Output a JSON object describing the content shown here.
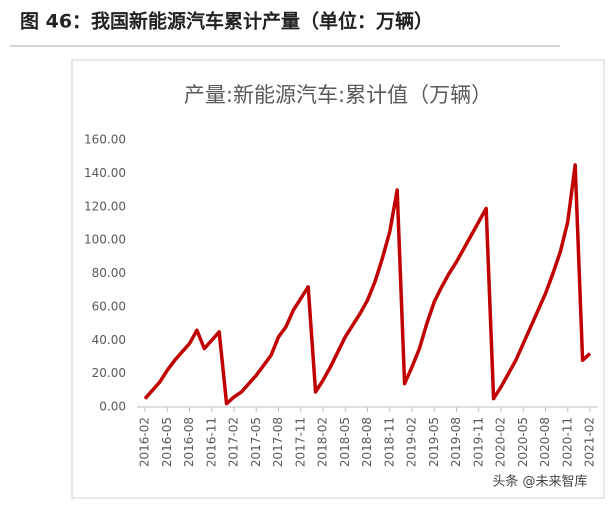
{
  "chart_data": {
    "type": "line",
    "heading": "图 46：我国新能源汽车累计产量（单位：万辆）",
    "title": "产量:新能源汽车:累计值（万辆）",
    "watermark": "头条 @未来智库",
    "categories": [
      "2016-02",
      null,
      null,
      "2016-05",
      null,
      null,
      "2016-08",
      null,
      null,
      "2016-11",
      null,
      null,
      "2017-02",
      null,
      null,
      "2017-05",
      null,
      null,
      "2017-08",
      null,
      null,
      "2017-11",
      null,
      null,
      "2018-02",
      null,
      null,
      "2018-05",
      null,
      null,
      "2018-08",
      null,
      null,
      "2018-11",
      null,
      null,
      "2019-02",
      null,
      null,
      "2019-05",
      null,
      null,
      "2019-08",
      null,
      null,
      "2019-11",
      null,
      null,
      "2020-02",
      null,
      null,
      "2020-05",
      null,
      null,
      "2020-08",
      null,
      null,
      "2020-11",
      null,
      null,
      "2021-02"
    ],
    "series": [
      {
        "name": "产量:新能源汽车:累计值",
        "color": "#c00000",
        "values": [
          5,
          10,
          15,
          22,
          28,
          33,
          38,
          46,
          35,
          40,
          45,
          2,
          6,
          9,
          14,
          19,
          25,
          31,
          42,
          48,
          58,
          65,
          72,
          9,
          16,
          24,
          33,
          42,
          49,
          56,
          64,
          75,
          89,
          105,
          130,
          14,
          24,
          35,
          50,
          63,
          72,
          80,
          87,
          95,
          103,
          111,
          119,
          5,
          12,
          20,
          28,
          38,
          48,
          58,
          68,
          80,
          93,
          111,
          145,
          28,
          32
        ]
      }
    ],
    "ylim": [
      0,
      160
    ],
    "yticks": [
      {
        "value": 0,
        "label": "0.00"
      },
      {
        "value": 20,
        "label": "20.00"
      },
      {
        "value": 40,
        "label": "40.00"
      },
      {
        "value": 60,
        "label": "60.00"
      },
      {
        "value": 80,
        "label": "80.00"
      },
      {
        "value": 100,
        "label": "100.00"
      },
      {
        "value": 120,
        "label": "120.00"
      },
      {
        "value": 140,
        "label": "140.00"
      },
      {
        "value": 160,
        "label": "160.00"
      }
    ]
  }
}
